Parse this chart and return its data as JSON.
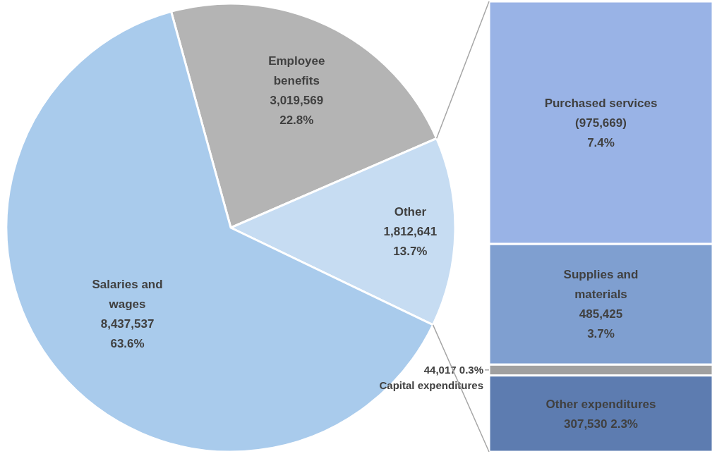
{
  "chart_data": [
    {
      "type": "pie",
      "categories": [
        "Employee benefits",
        "Other",
        "Salaries and wages"
      ],
      "values": [
        3019569,
        1812641,
        8437537
      ],
      "colors": [
        "#b4b4b4",
        "#c6dcf2",
        "#a9cbec"
      ],
      "value_labels": [
        "3,019,569\n22.8%",
        "1,812,641\n13.7%",
        "8,437,537\n63.6%"
      ]
    },
    {
      "type": "bar",
      "stacked": true,
      "categories": [
        null
      ],
      "series": [
        {
          "name": "Other expenditures",
          "color": "#5d7cb0",
          "values": [
            307530
          ],
          "value_labels": [
            "307,530  2.3%"
          ]
        },
        {
          "name": "Capital expenditures",
          "color": "#a0a0a0",
          "values": [
            44017
          ],
          "value_labels": [
            "44,017  0.3%"
          ]
        },
        {
          "name": "Supplies and materials",
          "color": "#7f9fd0",
          "values": [
            485425
          ],
          "value_labels": [
            "485,425\n3.7%"
          ]
        },
        {
          "name": "Purchased services",
          "color": "#99b3e6",
          "values": [
            975669
          ],
          "value_labels": [
            "(975,669)\n7.4%"
          ]
        }
      ]
    }
  ]
}
